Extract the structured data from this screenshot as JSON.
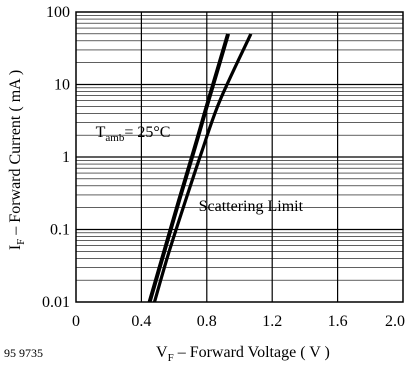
{
  "figure_id": "95 9735",
  "chart_data": {
    "type": "line",
    "xlabel": {
      "main": "V",
      "sub": "F",
      "rest": " – Forward Voltage ( V )"
    },
    "ylabel": {
      "main": "I",
      "sub": "F",
      "rest": " – Forward Current ( mA )"
    },
    "xlim": [
      0,
      2.0
    ],
    "ylim": [
      0.01,
      100
    ],
    "yscale": "log",
    "grid": true,
    "x_ticks": [
      {
        "value": 0,
        "label": "0"
      },
      {
        "value": 0.4,
        "label": "0.4"
      },
      {
        "value": 0.8,
        "label": "0.8"
      },
      {
        "value": 1.2,
        "label": "1.2"
      },
      {
        "value": 1.6,
        "label": "1.6"
      },
      {
        "value": 2.0,
        "label": "2.0"
      }
    ],
    "y_ticks": [
      {
        "value": 0.01,
        "label": "0.01"
      },
      {
        "value": 0.1,
        "label": "0.1"
      },
      {
        "value": 1,
        "label": "1"
      },
      {
        "value": 10,
        "label": "10"
      },
      {
        "value": 100,
        "label": "100"
      }
    ],
    "series": [
      {
        "x": [
          0.45,
          0.54,
          0.63,
          0.72,
          0.81,
          0.93
        ],
        "y": [
          0.01,
          0.05,
          0.25,
          1.2,
          6,
          50
        ]
      },
      {
        "x": [
          0.48,
          0.57,
          0.67,
          0.77,
          0.88,
          1.07
        ],
        "y": [
          0.01,
          0.05,
          0.25,
          1.2,
          6,
          50
        ]
      }
    ],
    "annotations": [
      {
        "id": "temp",
        "main": "T",
        "sub": "amb",
        "rest": "= 25°C",
        "x": 0.12,
        "y": 1.9
      },
      {
        "id": "scatter",
        "text": "Scattering Limit",
        "x": 0.75,
        "y": 0.18
      }
    ],
    "colors": {
      "lines": "#000000",
      "grid": "#000000",
      "background": "#ffffff"
    }
  }
}
